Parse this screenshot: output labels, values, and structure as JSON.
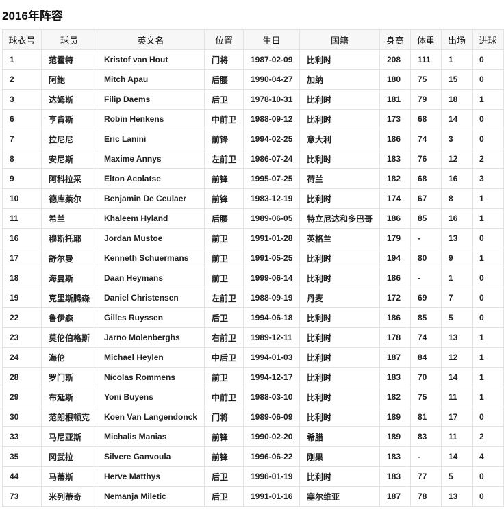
{
  "title": "2016年阵容",
  "columns": [
    "球衣号",
    "球员",
    "英文名",
    "位置",
    "生日",
    "国籍",
    "身高",
    "体重",
    "出场",
    "进球"
  ],
  "rows": [
    [
      "1",
      "范霍特",
      "Kristof van Hout",
      "门将",
      "1987-02-09",
      "比利时",
      "208",
      "111",
      "1",
      "0"
    ],
    [
      "2",
      "阿鲍",
      "Mitch Apau",
      "后腰",
      "1990-04-27",
      "加纳",
      "180",
      "75",
      "15",
      "0"
    ],
    [
      "3",
      "达姆斯",
      "Filip Daems",
      "后卫",
      "1978-10-31",
      "比利时",
      "181",
      "79",
      "18",
      "1"
    ],
    [
      "6",
      "亨肯斯",
      "Robin Henkens",
      "中前卫",
      "1988-09-12",
      "比利时",
      "173",
      "68",
      "14",
      "0"
    ],
    [
      "7",
      "拉尼尼",
      "Eric Lanini",
      "前锋",
      "1994-02-25",
      "意大利",
      "186",
      "74",
      "3",
      "0"
    ],
    [
      "8",
      "安尼斯",
      "Maxime Annys",
      "左前卫",
      "1986-07-24",
      "比利时",
      "183",
      "76",
      "12",
      "2"
    ],
    [
      "9",
      "阿科拉采",
      "Elton Acolatse",
      "前锋",
      "1995-07-25",
      "荷兰",
      "182",
      "68",
      "16",
      "3"
    ],
    [
      "10",
      "德库莱尔",
      "Benjamin De Ceulaer",
      "前锋",
      "1983-12-19",
      "比利时",
      "174",
      "67",
      "8",
      "1"
    ],
    [
      "11",
      "希兰",
      "Khaleem Hyland",
      "后腰",
      "1989-06-05",
      "特立尼达和多巴哥",
      "186",
      "85",
      "16",
      "1"
    ],
    [
      "16",
      "穆斯托耶",
      "Jordan Mustoe",
      "前卫",
      "1991-01-28",
      "英格兰",
      "179",
      "-",
      "13",
      "0"
    ],
    [
      "17",
      "舒尔曼",
      "Kenneth Schuermans",
      "前卫",
      "1991-05-25",
      "比利时",
      "194",
      "80",
      "9",
      "1"
    ],
    [
      "18",
      "海曼斯",
      "Daan Heymans",
      "前卫",
      "1999-06-14",
      "比利时",
      "186",
      "-",
      "1",
      "0"
    ],
    [
      "19",
      "克里斯腾森",
      "Daniel Christensen",
      "左前卫",
      "1988-09-19",
      "丹麦",
      "172",
      "69",
      "7",
      "0"
    ],
    [
      "22",
      "鲁伊森",
      "Gilles Ruyssen",
      "后卫",
      "1994-06-18",
      "比利时",
      "186",
      "85",
      "5",
      "0"
    ],
    [
      "23",
      "莫伦伯格斯",
      "Jarno Molenberghs",
      "右前卫",
      "1989-12-11",
      "比利时",
      "178",
      "74",
      "13",
      "1"
    ],
    [
      "24",
      "海伦",
      "Michael Heylen",
      "中后卫",
      "1994-01-03",
      "比利时",
      "187",
      "84",
      "12",
      "1"
    ],
    [
      "28",
      "罗门斯",
      "Nicolas Rommens",
      "前卫",
      "1994-12-17",
      "比利时",
      "183",
      "70",
      "14",
      "1"
    ],
    [
      "29",
      "布延斯",
      "Yoni Buyens",
      "中前卫",
      "1988-03-10",
      "比利时",
      "182",
      "75",
      "11",
      "1"
    ],
    [
      "30",
      "范朗根顿克",
      "Koen Van Langendonck",
      "门将",
      "1989-06-09",
      "比利时",
      "189",
      "81",
      "17",
      "0"
    ],
    [
      "33",
      "马尼亚斯",
      "Michalis Manias",
      "前锋",
      "1990-02-20",
      "希腊",
      "189",
      "83",
      "11",
      "2"
    ],
    [
      "35",
      "冈武拉",
      "Silvere Ganvoula",
      "前锋",
      "1996-06-22",
      "刚果",
      "183",
      "-",
      "14",
      "4"
    ],
    [
      "44",
      "马蒂斯",
      "Herve Matthys",
      "后卫",
      "1996-01-19",
      "比利时",
      "183",
      "77",
      "5",
      "0"
    ],
    [
      "73",
      "米列蒂奇",
      "Nemanja Miletic",
      "后卫",
      "1991-01-16",
      "塞尔维亚",
      "187",
      "78",
      "13",
      "0"
    ]
  ]
}
